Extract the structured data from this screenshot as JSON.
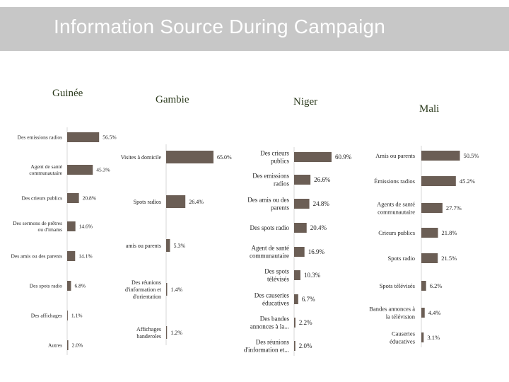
{
  "header": {
    "title": "Information Source During Campaign"
  },
  "colors": {
    "bar": "#6b5e55",
    "highlight": "#9e8c86",
    "title_bg": "#c7c7c7"
  },
  "chart_data": [
    {
      "type": "bar",
      "orientation": "horizontal",
      "title": "Guinée",
      "categories": [
        "Des emissions radios",
        "Agent de santé communautaire",
        "Des crieurs publics",
        "Des sermons de prêtres ou d'imams",
        "Des amis ou des parents",
        "Des spots radio",
        "Des affichages",
        "Autres"
      ],
      "category_lines": [
        [
          "Des emissions radios"
        ],
        [
          "Agent de santé",
          "communautaire"
        ],
        [
          "Des crieurs publics"
        ],
        [
          "Des sermons de prêtres",
          "ou d'imams"
        ],
        [
          "Des amis ou des parents"
        ],
        [
          "Des spots radio"
        ],
        [
          "Des affichages"
        ],
        [
          "Autres"
        ]
      ],
      "values": [
        56.5,
        45.3,
        20.8,
        14.6,
        14.1,
        6.8,
        1.1,
        2.0
      ],
      "value_labels": [
        "56.5%",
        "45.3%",
        "20.8%",
        "14.6%",
        "14.1%",
        "6.8%",
        "1.1%",
        "2.0%"
      ]
    },
    {
      "type": "bar",
      "orientation": "horizontal",
      "title": "Gambie",
      "categories": [
        "Visites à domicile",
        "Spots radios",
        "amis ou parents",
        "Des réunions d'information et d'orientation",
        "Affichages banderoles"
      ],
      "category_lines": [
        [
          "Visites à domicile"
        ],
        [
          "Spots radios"
        ],
        [
          "amis ou parents"
        ],
        [
          "Des réunions",
          "d'information et",
          "d'orientation"
        ],
        [
          "Affichages",
          "banderoles"
        ]
      ],
      "values": [
        65.0,
        26.4,
        5.3,
        1.4,
        1.2
      ],
      "value_labels": [
        "65.0%",
        "26.4%",
        "5.3%",
        "1.4%",
        "1.2%"
      ]
    },
    {
      "type": "bar",
      "orientation": "horizontal",
      "title": "Niger",
      "categories": [
        "Des crieurs publics",
        "Des emissions radios",
        "Des amis ou des parents",
        "Des spots radio",
        "Agent de santé communautaire",
        "Des spots télévisés",
        "Des causeries éducatives",
        "Des bandes annonces à la...",
        "Des réunions d'information et..."
      ],
      "category_lines": [
        [
          "Des crieurs",
          "publics"
        ],
        [
          "Des emissions",
          "radios"
        ],
        [
          "Des amis ou des",
          "parents"
        ],
        [
          "Des spots radio"
        ],
        [
          "Agent de santé",
          "communautaire"
        ],
        [
          "Des spots",
          "télévisés"
        ],
        [
          "Des causeries",
          "éducatives"
        ],
        [
          "Des bandes",
          "annonces à la..."
        ],
        [
          "Des réunions",
          "d'information et..."
        ]
      ],
      "values": [
        60.9,
        26.6,
        24.8,
        20.4,
        16.9,
        10.3,
        6.7,
        2.2,
        2.0
      ],
      "value_labels": [
        "60.9%",
        "26.6%",
        "24.8%",
        "20.4%",
        "16.9%",
        "10.3%",
        "6.7%",
        "2.2%",
        "2.0%"
      ]
    },
    {
      "type": "bar",
      "orientation": "horizontal",
      "title": "Mali",
      "categories": [
        "Amis ou parents",
        "Emissions radios",
        "Agents de santé communautaire",
        "Crieurs publics",
        "Spots radio",
        "Spots télévisés",
        "Bandes annonces à la télévision",
        "Causeries éducatives"
      ],
      "category_lines": [
        [
          "Amis ou parents"
        ],
        [
          "Émissions radios"
        ],
        [
          "Agents de santé",
          "communautaire"
        ],
        [
          "Crieurs publics"
        ],
        [
          "Spots radio"
        ],
        [
          "Spots télévisés"
        ],
        [
          "Bandes annonces à",
          "la télévision"
        ],
        [
          "Causeries",
          "éducatives"
        ]
      ],
      "values": [
        50.5,
        45.2,
        27.7,
        21.8,
        21.5,
        6.2,
        4.4,
        3.1
      ],
      "value_labels": [
        "50.5%",
        "45.2%",
        "27.7%",
        "21.8%",
        "21.5%",
        "6.2%",
        "4.4%",
        "3.1%"
      ]
    }
  ]
}
